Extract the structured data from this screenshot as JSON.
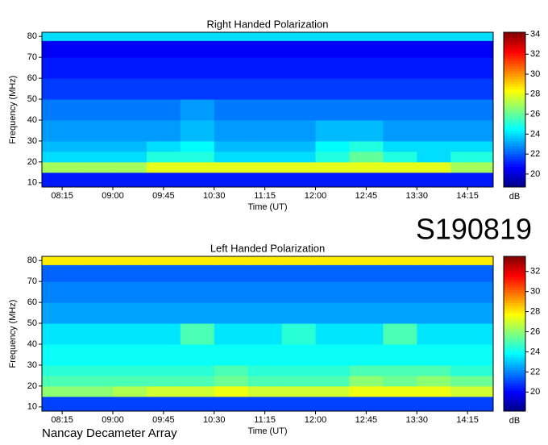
{
  "chart_data": [
    {
      "type": "heatmap",
      "title": "Right Handed Polarization",
      "xlabel": "Time (UT)",
      "ylabel": "Frequency (MHz)",
      "colorbar_label": "dB",
      "xlim": [
        7.95,
        14.63
      ],
      "ylim": [
        8,
        82
      ],
      "xticks": [
        {
          "value": 8.25,
          "label": "08:15"
        },
        {
          "value": 9,
          "label": "09:00"
        },
        {
          "value": 9.75,
          "label": "09:45"
        },
        {
          "value": 10.5,
          "label": "10:30"
        },
        {
          "value": 11.25,
          "label": "11:15"
        },
        {
          "value": 12,
          "label": "12:00"
        },
        {
          "value": 12.75,
          "label": "12:45"
        },
        {
          "value": 13.5,
          "label": "13:30"
        },
        {
          "value": 14.25,
          "label": "14:15"
        }
      ],
      "yticks": [
        10,
        20,
        30,
        40,
        50,
        60,
        70,
        80
      ],
      "clim": [
        18.7,
        34.2
      ],
      "cticks": [
        20,
        22,
        24,
        26,
        28,
        30,
        32,
        34
      ],
      "colormap": "jet",
      "x_bins": [
        7.95,
        8.5,
        9,
        9.5,
        10,
        10.5,
        11,
        11.5,
        12,
        12.5,
        13,
        13.5,
        14,
        14.63
      ],
      "y_bins": [
        8,
        15,
        20,
        25,
        30,
        40,
        50,
        60,
        70,
        78,
        82
      ],
      "z": [
        [
          21,
          21,
          21,
          21,
          21,
          21,
          21,
          21,
          21,
          21,
          21,
          21,
          21
        ],
        [
          27,
          27,
          27,
          28,
          28,
          28,
          28,
          28,
          28,
          28,
          28,
          28,
          27
        ],
        [
          24,
          24,
          24,
          25,
          25,
          24,
          24,
          24,
          25,
          26,
          25,
          24,
          25
        ],
        [
          23.5,
          23.5,
          23.5,
          24,
          24.5,
          23.5,
          23.5,
          23.5,
          24.5,
          25,
          24,
          24,
          24
        ],
        [
          23,
          23,
          23,
          23,
          23.5,
          23,
          23,
          23,
          23.5,
          23.5,
          23,
          23,
          23
        ],
        [
          22.5,
          22.5,
          22.5,
          22.5,
          23,
          22.5,
          22.5,
          22.5,
          22.5,
          22.5,
          22.5,
          22.5,
          22.5
        ],
        [
          21.5,
          21.5,
          21.5,
          21.5,
          21.5,
          21.5,
          21.5,
          21.5,
          21.5,
          21.5,
          21.5,
          21.5,
          21.5
        ],
        [
          21,
          21,
          21,
          21,
          21,
          21,
          21,
          21,
          21,
          21,
          21,
          21,
          21
        ],
        [
          20.5,
          20.5,
          20.5,
          20.5,
          20.5,
          20.5,
          20.5,
          20.5,
          20.5,
          20.5,
          20.5,
          20.5,
          20.5
        ],
        [
          24,
          24,
          24,
          24,
          24,
          24,
          24,
          24,
          24,
          24,
          24,
          24,
          24
        ]
      ]
    },
    {
      "type": "heatmap",
      "title": "Left Handed Polarization",
      "xlabel": "Time (UT)",
      "ylabel": "Frequency (MHz)",
      "colorbar_label": "dB",
      "xlim": [
        7.95,
        14.63
      ],
      "ylim": [
        8,
        82
      ],
      "xticks": [
        {
          "value": 8.25,
          "label": "08:15"
        },
        {
          "value": 9,
          "label": "09:00"
        },
        {
          "value": 9.75,
          "label": "09:45"
        },
        {
          "value": 10.5,
          "label": "10:30"
        },
        {
          "value": 11.25,
          "label": "11:15"
        },
        {
          "value": 12,
          "label": "12:00"
        },
        {
          "value": 12.75,
          "label": "12:45"
        },
        {
          "value": 13.5,
          "label": "13:30"
        },
        {
          "value": 14.25,
          "label": "14:15"
        }
      ],
      "yticks": [
        10,
        20,
        30,
        40,
        50,
        60,
        70,
        80
      ],
      "clim": [
        18.1,
        33.5
      ],
      "cticks": [
        20,
        22,
        24,
        26,
        28,
        30,
        32
      ],
      "colormap": "jet",
      "x_bins": [
        7.95,
        8.5,
        9,
        9.5,
        10,
        10.5,
        11,
        11.5,
        12,
        12.5,
        13,
        13.5,
        14,
        14.63
      ],
      "y_bins": [
        8,
        15,
        20,
        25,
        30,
        40,
        50,
        60,
        70,
        78,
        82
      ],
      "z": [
        [
          21,
          21,
          21,
          21,
          21,
          21,
          21,
          21,
          21,
          21,
          21,
          21,
          21
        ],
        [
          26,
          26,
          26.5,
          27,
          27,
          27.5,
          27,
          27,
          27,
          27.5,
          27.5,
          27.5,
          27
        ],
        [
          25,
          25,
          25,
          25,
          25,
          25.5,
          25,
          25,
          25,
          26,
          25.5,
          26,
          25.5
        ],
        [
          24.5,
          24.5,
          24.5,
          24.5,
          24.5,
          25,
          24.5,
          24.5,
          24.5,
          25,
          25,
          25,
          24.5
        ],
        [
          24,
          24,
          24,
          24,
          24,
          24,
          24,
          24,
          24,
          24,
          24,
          24,
          24
        ],
        [
          23.5,
          23.5,
          23.5,
          23.5,
          25,
          23.5,
          23.5,
          24.5,
          23.5,
          23.5,
          25,
          23.5,
          23.5
        ],
        [
          22.5,
          22.5,
          22.5,
          22.5,
          22.5,
          22.5,
          22.5,
          22.5,
          22.5,
          22.5,
          22.5,
          22.5,
          22.5
        ],
        [
          22,
          22,
          22,
          22,
          22,
          22,
          22,
          22,
          22,
          22,
          22,
          22,
          22
        ],
        [
          21.5,
          21.5,
          21.5,
          21.5,
          21.5,
          21.5,
          21.5,
          21.5,
          21.5,
          21.5,
          21.5,
          21.5,
          21.5
        ],
        [
          28,
          28,
          28,
          28,
          28,
          28,
          28,
          28,
          28,
          28,
          28,
          28,
          28
        ]
      ]
    }
  ],
  "label": "S190819",
  "footer": "Nancay Decameter Array"
}
